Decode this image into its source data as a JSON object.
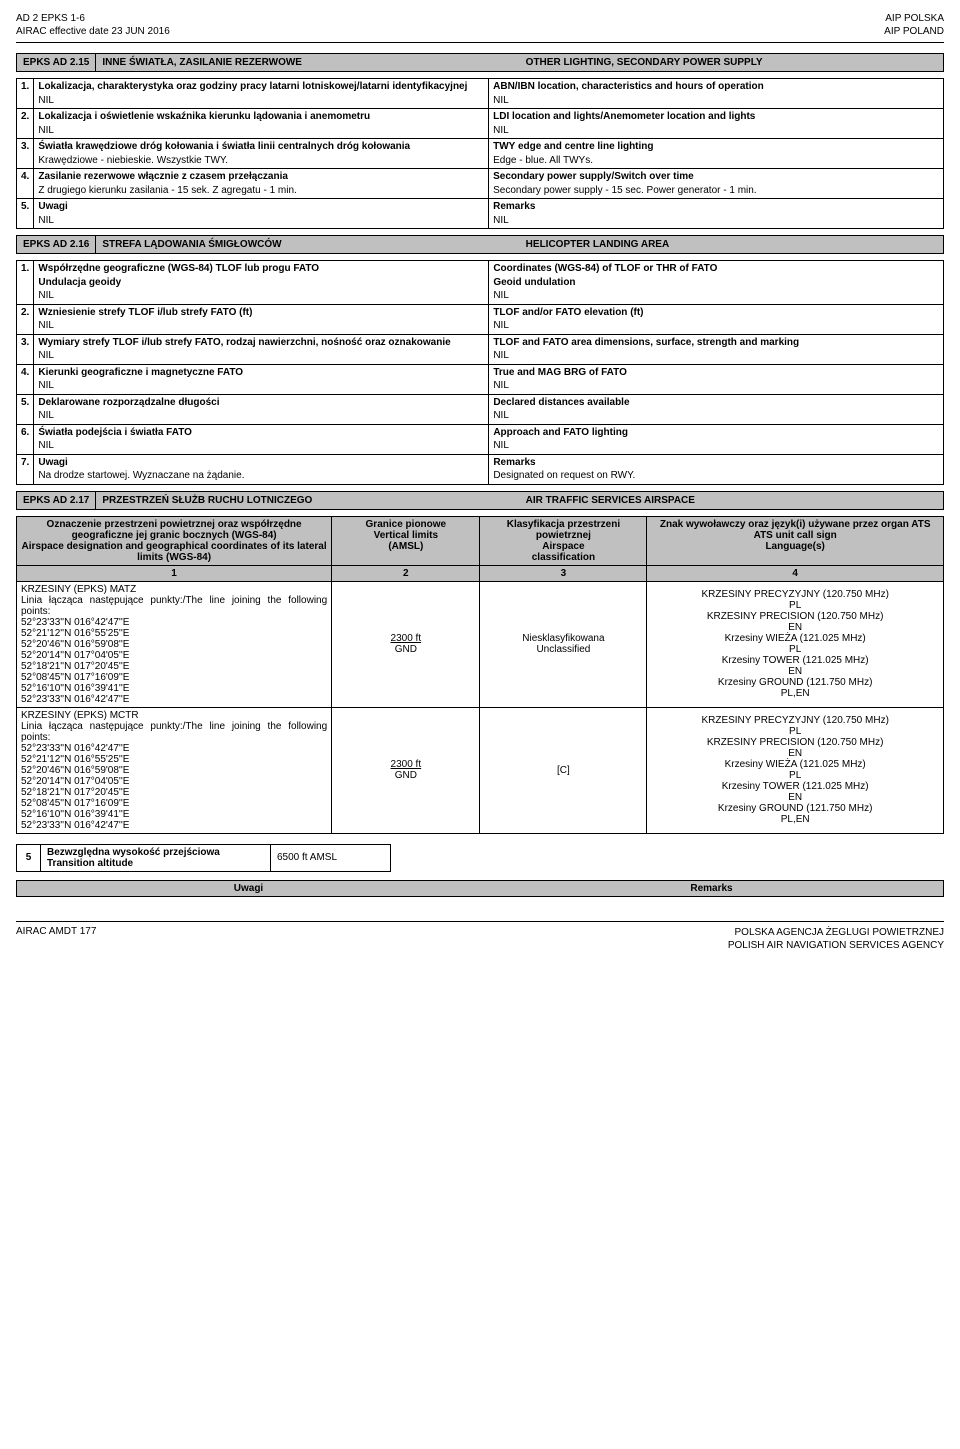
{
  "header": {
    "top_left_1": "AD 2 EPKS 1-6",
    "top_left_2": "AIRAC effective date   23 JUN 2016",
    "top_right_1": "AIP POLSKA",
    "top_right_2": "AIP POLAND"
  },
  "section215": {
    "code": "EPKS  AD 2.15",
    "title_pl": "INNE ŚWIATŁA, ZASILANIE REZERWOWE",
    "title_en": "OTHER LIGHTING, SECONDARY POWER SUPPLY",
    "rows": [
      {
        "n": "1.",
        "pl_b": "Lokalizacja, charakterystyka oraz godziny pracy latarni lotniskowej/latarni identyfikacyjnej",
        "pl_v": "NIL",
        "en_b": "ABN/IBN location, characteristics and hours of operation",
        "en_v": "NIL"
      },
      {
        "n": "2.",
        "pl_b": "Lokalizacja i oświetlenie wskaźnika kierunku lądowania i anemometru",
        "pl_v": "NIL",
        "en_b": "LDI location and lights/Anemometer location and lights",
        "en_v": "NIL"
      },
      {
        "n": "3.",
        "pl_b": "Światła krawędziowe dróg kołowania i światła linii centralnych dróg kołowania",
        "pl_v": "Krawędziowe - niebieskie. Wszystkie TWY.",
        "en_b": "TWY edge and centre line lighting",
        "en_v": "Edge - blue. All TWYs."
      },
      {
        "n": "4.",
        "pl_b": "Zasilanie rezerwowe włącznie z czasem przełączania",
        "pl_v": "Z drugiego kierunku zasilania - 15 sek. Z agregatu - 1 min.",
        "en_b": "Secondary power supply/Switch over time",
        "en_v": "Secondary power supply - 15 sec. Power generator - 1 min."
      },
      {
        "n": "5.",
        "pl_b": "Uwagi",
        "pl_v": "NIL",
        "en_b": "Remarks",
        "en_v": "NIL"
      }
    ]
  },
  "section216": {
    "code": "EPKS  AD 2.16",
    "title_pl": "STREFA LĄDOWANIA ŚMIGŁOWCÓW",
    "title_en": "HELICOPTER LANDING AREA",
    "rows": [
      {
        "n": "1.",
        "pl_b": "Współrzędne geograficzne (WGS-84) TLOF lub progu FATO\nUndulacja geoidy",
        "pl_v": "NIL",
        "en_b": "Coordinates (WGS-84) of TLOF or THR of FATO\nGeoid undulation",
        "en_v": "NIL"
      },
      {
        "n": "2.",
        "pl_b": "Wzniesienie strefy TLOF i/lub strefy FATO (ft)",
        "pl_v": "NIL",
        "en_b": "TLOF and/or FATO elevation (ft)",
        "en_v": "NIL"
      },
      {
        "n": "3.",
        "pl_b": "Wymiary strefy TLOF i/lub strefy FATO, rodzaj nawierzchni, nośność oraz oznakowanie",
        "pl_v": "NIL",
        "en_b": "TLOF and FATO area dimensions, surface, strength and marking",
        "en_v": "NIL"
      },
      {
        "n": "4.",
        "pl_b": "Kierunki geograficzne i magnetyczne FATO",
        "pl_v": "NIL",
        "en_b": "True and MAG BRG of FATO",
        "en_v": "NIL"
      },
      {
        "n": "5.",
        "pl_b": "Deklarowane rozporządzalne długości",
        "pl_v": "NIL",
        "en_b": "Declared distances available",
        "en_v": "NIL"
      },
      {
        "n": "6.",
        "pl_b": "Światła podejścia i światła FATO",
        "pl_v": "NIL",
        "en_b": "Approach and FATO lighting",
        "en_v": "NIL"
      },
      {
        "n": "7.",
        "pl_b": "Uwagi",
        "pl_v": "Na drodze startowej. Wyznaczane na żądanie.",
        "en_b": "Remarks",
        "en_v": "Designated on request on RWY."
      }
    ]
  },
  "section217": {
    "code": "EPKS  AD 2.17",
    "title_pl": "PRZESTRZEŃ SŁUŻB RUCHU LOTNICZEGO",
    "title_en": "AIR TRAFFIC SERVICES AIRSPACE",
    "cols": {
      "c1a": "Oznaczenie przestrzeni powietrznej oraz współrzędne geograficzne jej granic bocznych (WGS-84)",
      "c1b": "Airspace designation and geographical coordinates of its lateral limits (WGS-84)",
      "c2a": "Granice pionowe",
      "c2b": "Vertical limits",
      "c2c": "(AMSL)",
      "c3a": "Klasyfikacja przestrzeni powietrznej",
      "c3b": "Airspace",
      "c3c": "classification",
      "c4a": "Znak wywoławczy oraz język(i) używane przez organ ATS",
      "c4b": "ATS unit call sign",
      "c4c": "Language(s)"
    },
    "num": {
      "c1": "1",
      "c2": "2",
      "c3": "3",
      "c4": "4"
    },
    "blocks": [
      {
        "name": "KRZESINY (EPKS)  MATZ",
        "intro": "Linia łącząca następujące punkty:/The line joining the following points:",
        "points": [
          "52°23'33''N   016°42'47''E",
          "52°21'12''N   016°55'25''E",
          "52°20'46''N   016°59'08''E",
          "52°20'14''N   017°04'05''E",
          "52°18'21''N   017°20'45''E",
          "52°08'45''N   017°16'09''E",
          "52°16'10''N   016°39'41''E",
          "52°23'33''N   016°42'47''E"
        ],
        "vert_upper": "2300 ft",
        "vert_lower": "GND",
        "class_pl": "Niesklasyfikowana",
        "class_en": "Unclassified",
        "ats": [
          "KRZESINY PRECYZYJNY (120.750 MHz)",
          "PL",
          "KRZESINY PRECISION (120.750 MHz)",
          "EN",
          "Krzesiny WIEŻA (121.025 MHz)",
          "PL",
          "Krzesiny TOWER (121.025 MHz)",
          "EN",
          "Krzesiny GROUND (121.750 MHz)",
          "PL,EN"
        ]
      },
      {
        "name": "KRZESINY (EPKS)  MCTR",
        "intro": "Linia łącząca następujące punkty:/The line joining the following points:",
        "points": [
          "52°23'33''N   016°42'47''E",
          "52°21'12''N   016°55'25''E",
          "52°20'46''N   016°59'08''E",
          "52°20'14''N   017°04'05''E",
          "52°18'21''N   017°20'45''E",
          "52°08'45''N   017°16'09''E",
          "52°16'10''N   016°39'41''E",
          "52°23'33''N   016°42'47''E"
        ],
        "vert_upper": "2300 ft",
        "vert_lower": "GND",
        "class_pl": "",
        "class_en": "[C]",
        "ats": [
          "KRZESINY PRECYZYJNY (120.750 MHz)",
          "PL",
          "KRZESINY PRECISION (120.750 MHz)",
          "EN",
          "Krzesiny WIEŻA (121.025 MHz)",
          "PL",
          "Krzesiny TOWER (121.025 MHz)",
          "EN",
          "Krzesiny GROUND (121.750 MHz)",
          "PL,EN"
        ]
      }
    ],
    "transition": {
      "num": "5",
      "labels": "Bezwzględna wysokość przejściowa\nTransition altitude",
      "value": "6500 ft AMSL"
    },
    "remarks_pl": "Uwagi",
    "remarks_en": "Remarks"
  },
  "footer": {
    "left": "AIRAC AMDT 177",
    "right_1": "POLSKA AGENCJA ŻEGLUGI POWIETRZNEJ",
    "right_2": "POLISH AIR NAVIGATION SERVICES AGENCY"
  }
}
